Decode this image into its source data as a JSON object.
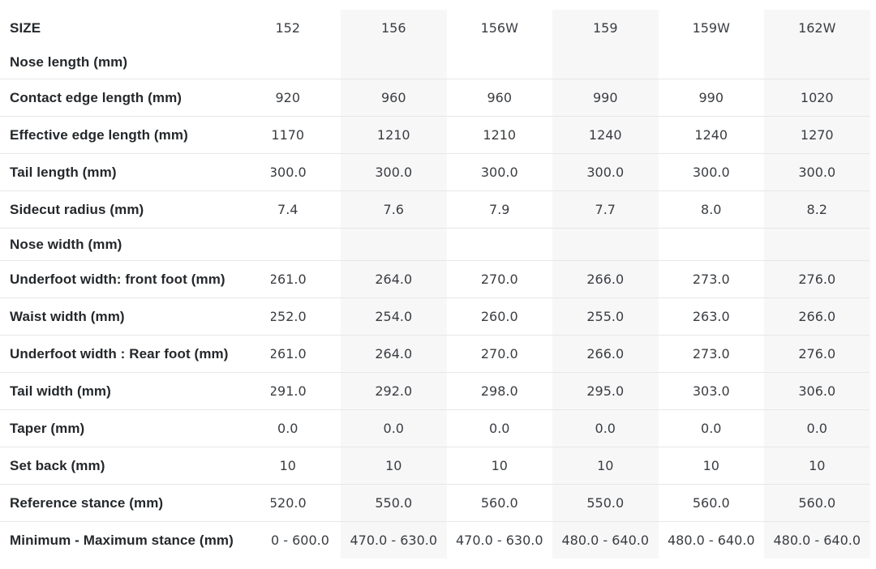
{
  "table": {
    "size_label": "SIZE",
    "sizes": [
      "152",
      "156",
      "156W",
      "159",
      "159W",
      "162W"
    ],
    "rows": [
      {
        "label": "Nose length (mm)",
        "values": [
          "",
          "",
          "",
          "",
          "",
          ""
        ]
      },
      {
        "label": "Contact edge length (mm)",
        "values": [
          "920",
          "960",
          "960",
          "990",
          "990",
          "1020"
        ]
      },
      {
        "label": "Effective edge length (mm)",
        "values": [
          "1170",
          "1210",
          "1210",
          "1240",
          "1240",
          "1270"
        ]
      },
      {
        "label": "Tail length (mm)",
        "values": [
          "300.0",
          "300.0",
          "300.0",
          "300.0",
          "300.0",
          "300.0"
        ]
      },
      {
        "label": "Sidecut radius (mm)",
        "values": [
          "7.4",
          "7.6",
          "7.9",
          "7.7",
          "8.0",
          "8.2"
        ]
      },
      {
        "label": "Nose width (mm)",
        "values": [
          "",
          "",
          "",
          "",
          "",
          ""
        ]
      },
      {
        "label": "Underfoot width: front foot (mm)",
        "values": [
          "261.0",
          "264.0",
          "270.0",
          "266.0",
          "273.0",
          "276.0"
        ]
      },
      {
        "label": "Waist width (mm)",
        "values": [
          "252.0",
          "254.0",
          "260.0",
          "255.0",
          "263.0",
          "266.0"
        ]
      },
      {
        "label": "Underfoot width : Rear foot (mm)",
        "values": [
          "261.0",
          "264.0",
          "270.0",
          "266.0",
          "273.0",
          "276.0"
        ]
      },
      {
        "label": "Tail width (mm)",
        "values": [
          "291.0",
          "292.0",
          "298.0",
          "295.0",
          "303.0",
          "306.0"
        ]
      },
      {
        "label": "Taper (mm)",
        "values": [
          "0.0",
          "0.0",
          "0.0",
          "0.0",
          "0.0",
          "0.0"
        ]
      },
      {
        "label": "Set back (mm)",
        "values": [
          "10",
          "10",
          "10",
          "10",
          "10",
          "10"
        ]
      },
      {
        "label": "Reference stance (mm)",
        "values": [
          "520.0",
          "550.0",
          "560.0",
          "550.0",
          "560.0",
          "560.0"
        ]
      },
      {
        "label": "Minimum - Maximum stance (mm)",
        "values": [
          "0 - 600.0",
          "470.0 - 630.0",
          "470.0 - 630.0",
          "480.0 - 640.0",
          "480.0 - 640.0",
          "480.0 - 640.0"
        ]
      }
    ],
    "colors": {
      "background": "#ffffff",
      "column_stripe": "#f7f7f8",
      "row_separator": "#e7e7e8",
      "label_text": "#25282b",
      "value_text": "#3a3d41"
    }
  }
}
